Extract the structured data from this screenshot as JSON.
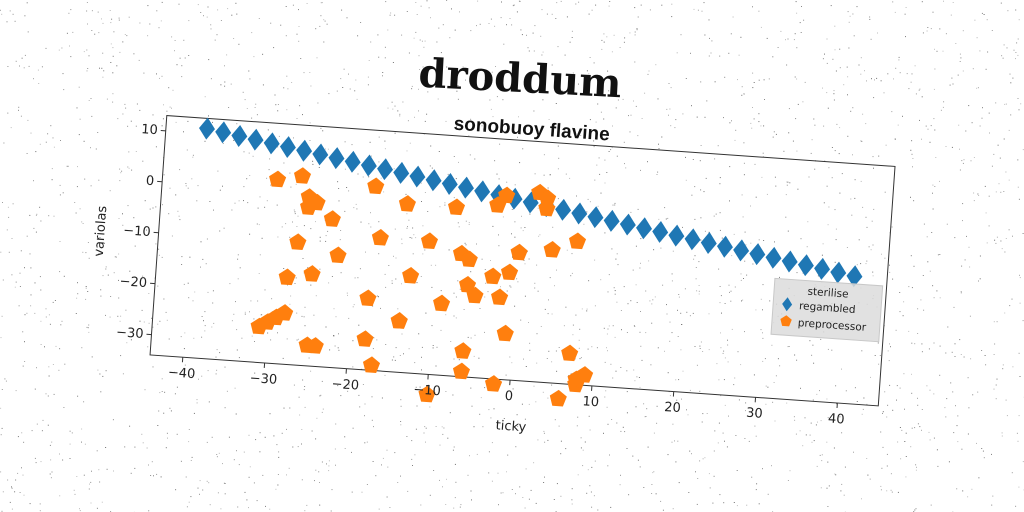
{
  "figure": {
    "title": "droddum",
    "subtitle": "sonobuoy flavine"
  },
  "chart_data": {
    "type": "scatter",
    "title": "sonobuoy flavine",
    "xlabel": "ticky",
    "ylabel": "variolas",
    "xlim": [
      -44,
      45
    ],
    "ylim": [
      -34,
      13
    ],
    "xticks": [
      -40,
      -30,
      -20,
      -10,
      0,
      10,
      20,
      30,
      40
    ],
    "yticks": [
      10,
      0,
      -10,
      -20,
      -30
    ],
    "grid": false,
    "legend": {
      "title": "sterilise",
      "placement": "center-right"
    },
    "series": [
      {
        "name": "regambled",
        "marker": "diamond",
        "color": "#1f77b4",
        "x": [
          -39,
          -37,
          -35,
          -33,
          -31,
          -29,
          -27,
          -25,
          -23,
          -21,
          -19,
          -17,
          -15,
          -13,
          -11,
          -9,
          -7,
          -5,
          -3,
          -1,
          1,
          3,
          5,
          7,
          9,
          11,
          13,
          15,
          17,
          19,
          21,
          23,
          25,
          27,
          29,
          31,
          33,
          35,
          37,
          39,
          41
        ],
        "y": [
          11,
          10.5,
          10,
          9.5,
          9,
          8.5,
          8,
          7.5,
          7,
          6.5,
          6,
          5.5,
          5,
          4.5,
          4,
          3.5,
          3,
          2.5,
          2,
          1.5,
          1,
          0.5,
          0,
          -0.5,
          -1,
          -1.5,
          -2,
          -2.5,
          -3,
          -3.5,
          -4,
          -4.5,
          -5,
          -5.5,
          -6,
          -6.5,
          -7,
          -7.5,
          -8,
          -8.5,
          -9
        ]
      },
      {
        "name": "preprocessor",
        "marker": "pentagon",
        "color": "#ff7f0e",
        "x": [
          -30,
          -27,
          -26,
          -25,
          -18,
          -14,
          -8,
          -3,
          -2,
          2,
          3,
          3,
          -26,
          -27,
          -23,
          -22,
          -17,
          -13,
          -11,
          -7,
          -6,
          0,
          4,
          7,
          -28,
          -25,
          -18,
          -14,
          -9,
          -6,
          -5,
          -3,
          -1,
          -2,
          -1,
          -31,
          -30,
          -29,
          -28,
          -25,
          -24,
          -18,
          -14,
          -6,
          -17,
          -6,
          -10,
          -2,
          7,
          8,
          9,
          8,
          6
        ],
        "y": [
          2,
          3,
          -1,
          -2,
          2,
          -1,
          -1,
          0,
          2,
          3,
          2,
          0,
          -3,
          -10,
          -5,
          -12,
          -8,
          -15,
          -8,
          -10,
          -11,
          -9,
          -8,
          -6,
          -17,
          -16,
          -20,
          -24,
          -20,
          -16,
          -18,
          -14,
          -13,
          -18,
          -25,
          -27,
          -26,
          -25,
          -24,
          -30,
          -30,
          -28,
          -24,
          -29,
          -33,
          -33,
          -38,
          -35,
          -28,
          -34,
          -32,
          -33,
          -37
        ]
      }
    ]
  }
}
